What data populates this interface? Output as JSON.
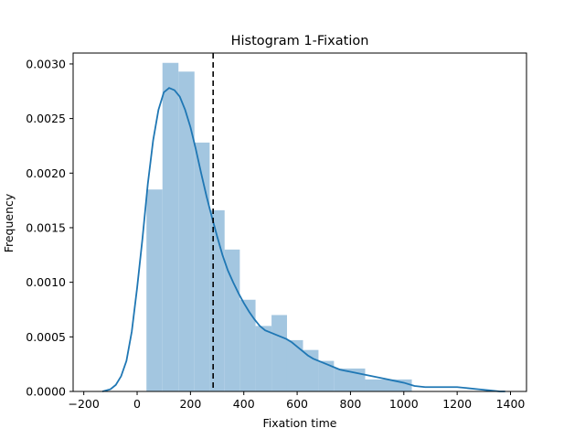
{
  "chart_data": {
    "type": "bar",
    "title": "Histogram 1-Fixation",
    "xlabel": "Fixation time",
    "ylabel": "Frequency",
    "xlim": [
      -240,
      1460
    ],
    "ylim": [
      0,
      0.0031
    ],
    "xticks": [
      -200,
      0,
      200,
      400,
      600,
      800,
      1000,
      1200,
      1400
    ],
    "xtick_labels": [
      "−200",
      "0",
      "200",
      "400",
      "600",
      "800",
      "1000",
      "1200",
      "1400"
    ],
    "yticks": [
      0,
      0.0005,
      0.001,
      0.0015,
      0.002,
      0.0025,
      0.003
    ],
    "ytick_labels": [
      "0.0000",
      "0.0005",
      "0.0010",
      "0.0015",
      "0.0020",
      "0.0025",
      "0.0030"
    ],
    "grid": false,
    "bins": [
      {
        "x0": 35,
        "x1": 95,
        "value": 0.00185
      },
      {
        "x0": 95,
        "x1": 155,
        "value": 0.00301
      },
      {
        "x0": 155,
        "x1": 215,
        "value": 0.00293
      },
      {
        "x0": 215,
        "x1": 272,
        "value": 0.00228
      },
      {
        "x0": 272,
        "x1": 328,
        "value": 0.00166
      },
      {
        "x0": 328,
        "x1": 385,
        "value": 0.0013
      },
      {
        "x0": 385,
        "x1": 444,
        "value": 0.00084
      },
      {
        "x0": 444,
        "x1": 504,
        "value": 0.0006
      },
      {
        "x0": 504,
        "x1": 562,
        "value": 0.0007
      },
      {
        "x0": 562,
        "x1": 622,
        "value": 0.00047
      },
      {
        "x0": 622,
        "x1": 680,
        "value": 0.00038
      },
      {
        "x0": 680,
        "x1": 738,
        "value": 0.00028
      },
      {
        "x0": 738,
        "x1": 855,
        "value": 0.00021
      },
      {
        "x0": 855,
        "x1": 1030,
        "value": 0.00011
      }
    ],
    "kde": {
      "x": [
        -130,
        -100,
        -80,
        -60,
        -40,
        -20,
        0,
        20,
        40,
        60,
        80,
        100,
        120,
        140,
        160,
        180,
        200,
        220,
        240,
        260,
        280,
        300,
        320,
        340,
        360,
        380,
        400,
        420,
        440,
        460,
        480,
        500,
        520,
        540,
        560,
        580,
        600,
        620,
        640,
        660,
        680,
        700,
        720,
        740,
        760,
        780,
        800,
        840,
        880,
        920,
        960,
        1000,
        1040,
        1080,
        1120,
        1160,
        1200,
        1240,
        1280,
        1320,
        1360,
        1380
      ],
      "y": [
        0.0,
        2e-05,
        6e-05,
        0.00014,
        0.00028,
        0.00055,
        0.00095,
        0.0014,
        0.0019,
        0.0023,
        0.00258,
        0.00274,
        0.00278,
        0.00276,
        0.0027,
        0.00258,
        0.00242,
        0.00222,
        0.002,
        0.00179,
        0.0016,
        0.00142,
        0.00125,
        0.00111,
        0.001,
        0.0009,
        0.00081,
        0.00073,
        0.00066,
        0.0006,
        0.00056,
        0.00054,
        0.00052,
        0.0005,
        0.00048,
        0.00045,
        0.00041,
        0.00037,
        0.00033,
        0.0003,
        0.00028,
        0.00026,
        0.00024,
        0.00022,
        0.0002,
        0.00019,
        0.00018,
        0.00016,
        0.00014,
        0.00012,
        0.0001,
        8e-05,
        5e-05,
        4e-05,
        4e-05,
        4e-05,
        4e-05,
        3e-05,
        2e-05,
        1e-05,
        0.0,
        0.0
      ]
    },
    "mean_line_x": 285,
    "colors": {
      "bar": "#a3c6e0",
      "kde": "#1f77b4",
      "mean_line": "#000000",
      "axis": "#000000"
    }
  }
}
